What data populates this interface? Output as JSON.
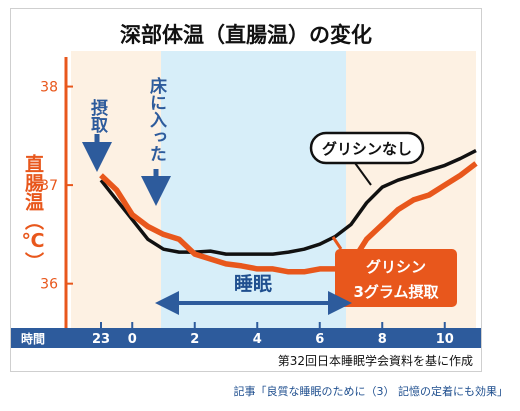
{
  "chart_data": {
    "type": "line",
    "title": "深部体温（直腸温）の変化",
    "ylabel": "直腸温（℃）",
    "xlabel": "時間",
    "x_ticks": [
      "23",
      "0",
      "2",
      "4",
      "6",
      "8",
      "10"
    ],
    "y_ticks": [
      "38",
      "37",
      "36"
    ],
    "ylim": [
      35.55,
      38.3
    ],
    "grid": false,
    "annotations": {
      "ingest": "摂取",
      "bedtime": "床に入った",
      "sleep": "睡眠",
      "source": "第32回日本睡眠学会資料を基に作成"
    },
    "series": [
      {
        "name": "グリシンなし",
        "color": "#111111",
        "x": [
          23.0,
          23.5,
          0.0,
          0.5,
          1.0,
          1.5,
          2.0,
          2.5,
          3.0,
          3.5,
          4.0,
          4.5,
          5.0,
          5.5,
          6.0,
          6.5,
          7.0,
          7.5,
          8.0,
          8.5,
          9.0,
          9.5,
          10.0,
          10.5,
          11.0
        ],
        "y": [
          37.05,
          36.85,
          36.65,
          36.45,
          36.35,
          36.32,
          36.32,
          36.33,
          36.3,
          36.3,
          36.3,
          36.3,
          36.32,
          36.35,
          36.4,
          36.48,
          36.6,
          36.82,
          36.98,
          37.05,
          37.1,
          37.15,
          37.2,
          37.27,
          37.35
        ]
      },
      {
        "name": "グリシン3グラム摂取",
        "color": "#e8571c",
        "x": [
          23.0,
          23.5,
          0.0,
          0.5,
          1.0,
          1.5,
          2.0,
          2.5,
          3.0,
          3.5,
          4.0,
          4.5,
          5.0,
          5.5,
          6.0,
          6.5,
          7.0,
          7.5,
          8.0,
          8.5,
          9.0,
          9.5,
          10.0,
          10.5,
          11.0
        ],
        "y": [
          37.1,
          36.95,
          36.7,
          36.58,
          36.5,
          36.45,
          36.3,
          36.25,
          36.2,
          36.18,
          36.15,
          36.15,
          36.12,
          36.12,
          36.15,
          36.15,
          36.2,
          36.45,
          36.6,
          36.75,
          36.85,
          36.9,
          37.0,
          37.1,
          37.22
        ]
      }
    ]
  },
  "caption": "記事「良質な睡眠のために（3） 記憶の定着にも効果」",
  "colors": {
    "sleep_band": "#d7eef9",
    "axis_bar": "#2d5b9c",
    "orange": "#e8571c",
    "arrow": "#2d5b9c",
    "peach_bg": "#fdf1e3"
  }
}
